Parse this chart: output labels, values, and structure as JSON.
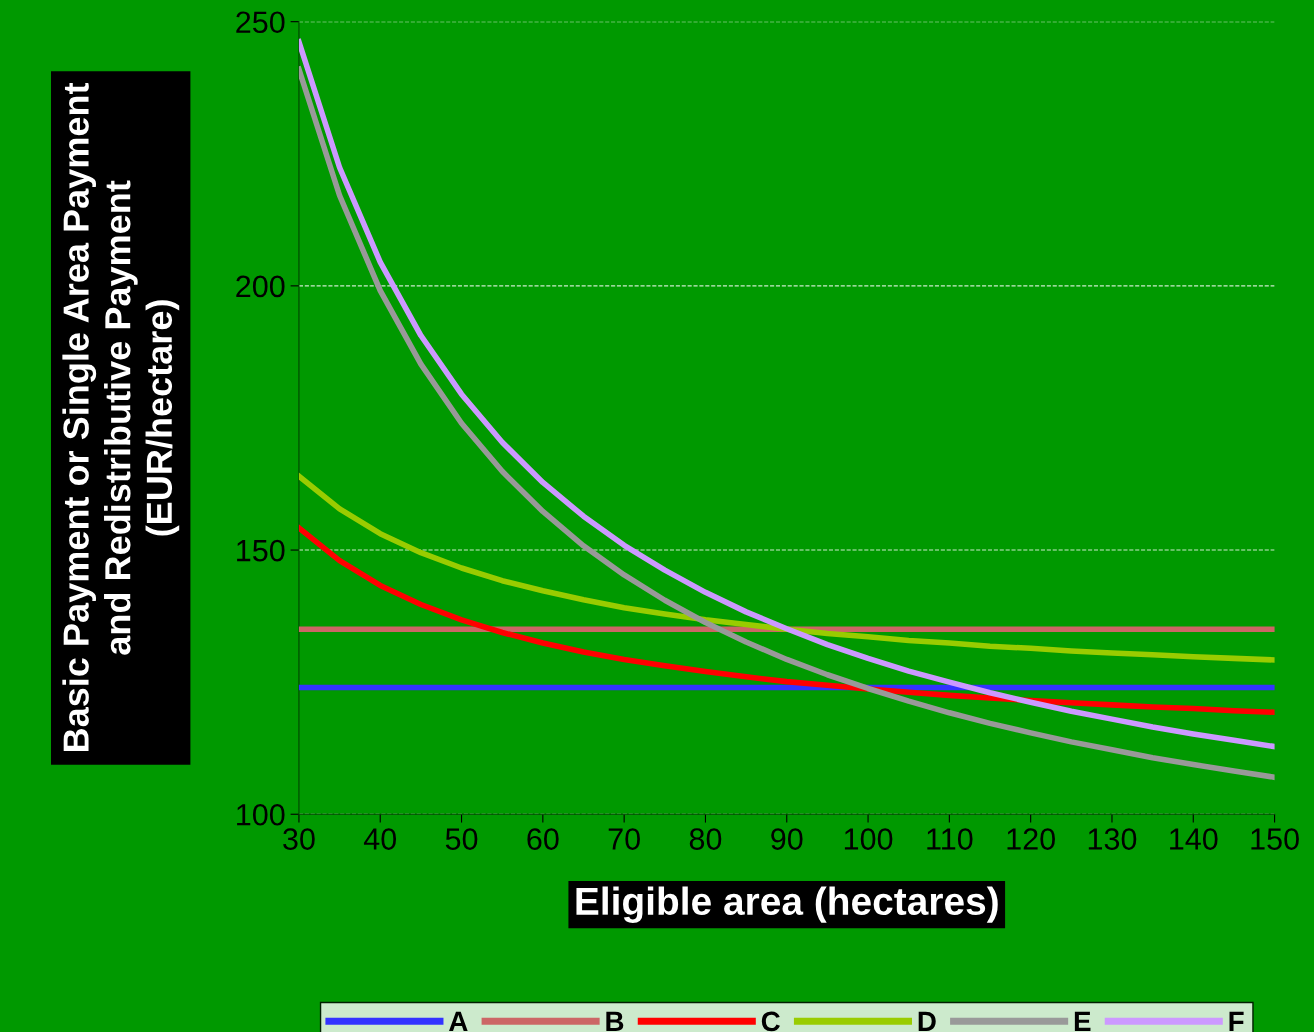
{
  "chart_data": {
    "type": "line",
    "xlabel": "Eligible area (hectares)",
    "ylabel": "Basic Payment or Single Area Payment\nand Redistributive Payment\n(EUR/hectare)",
    "x": [
      30,
      35,
      40,
      45,
      50,
      55,
      60,
      65,
      70,
      75,
      80,
      85,
      90,
      95,
      100,
      105,
      110,
      115,
      120,
      125,
      130,
      135,
      140,
      145,
      150
    ],
    "series": [
      {
        "name": "A",
        "color": "#3333ff",
        "values": [
          124,
          124,
          124,
          124,
          124,
          124,
          124,
          124,
          124,
          124,
          124,
          124,
          124,
          124,
          124,
          124,
          124,
          124,
          124,
          124,
          124,
          124,
          124,
          124,
          124
        ]
      },
      {
        "name": "B",
        "color": "#cc6666",
        "values": [
          135,
          135,
          135,
          135,
          135,
          135,
          135,
          135,
          135,
          135,
          135,
          135,
          135,
          135,
          135,
          135,
          135,
          135,
          135,
          135,
          135,
          135,
          135,
          135,
          135
        ]
      },
      {
        "name": "C",
        "color": "#ff0000",
        "values": [
          154.2,
          148.0,
          143.3,
          139.7,
          136.8,
          134.4,
          132.4,
          130.7,
          129.3,
          128.1,
          127.0,
          126.0,
          125.1,
          124.4,
          123.7,
          123.1,
          122.5,
          122.0,
          121.5,
          121.1,
          120.7,
          120.3,
          120.0,
          119.6,
          119.3
        ]
      },
      {
        "name": "D",
        "color": "#99cc00",
        "values": [
          164.0,
          157.8,
          153.1,
          149.5,
          146.6,
          144.2,
          142.3,
          140.6,
          139.1,
          137.9,
          136.8,
          135.9,
          135.0,
          134.2,
          133.6,
          132.9,
          132.4,
          131.8,
          131.4,
          130.9,
          130.5,
          130.2,
          129.8,
          129.5,
          129.2
        ]
      },
      {
        "name": "E",
        "color": "#999999",
        "values": [
          241.0,
          217.1,
          199.1,
          185.2,
          174.0,
          164.9,
          157.3,
          150.8,
          145.3,
          140.5,
          136.3,
          132.6,
          129.3,
          126.4,
          123.8,
          121.4,
          119.2,
          117.2,
          115.4,
          113.7,
          112.2,
          110.7,
          109.4,
          108.2,
          107.0
        ]
      },
      {
        "name": "F",
        "color": "#cc99ff",
        "values": [
          246.2,
          222.4,
          204.5,
          190.6,
          179.5,
          170.4,
          162.8,
          156.4,
          150.9,
          146.2,
          142.0,
          138.3,
          135.1,
          132.1,
          129.5,
          127.1,
          125.0,
          123.0,
          121.2,
          119.5,
          118.0,
          116.5,
          115.2,
          114.0,
          112.8
        ]
      }
    ],
    "xlim": [
      30,
      150
    ],
    "xticks": [
      30,
      40,
      50,
      60,
      70,
      80,
      90,
      100,
      110,
      120,
      130,
      140,
      150
    ],
    "ylim": [
      100,
      250
    ],
    "yticks": [
      100,
      150,
      200,
      250
    ],
    "grid": "y",
    "legend": "bottom",
    "marker": "none",
    "line_style": "solid"
  }
}
